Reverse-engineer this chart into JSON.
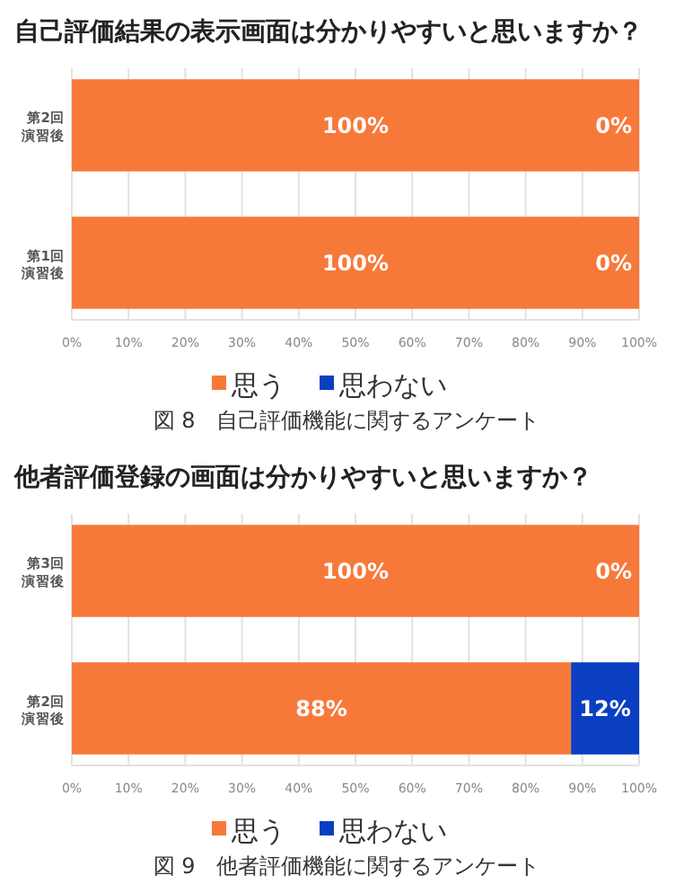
{
  "chart_data": [
    {
      "type": "bar",
      "orientation": "horizontal",
      "stacked": true,
      "title": "自己評価結果の表示画面は分かりやすいと思いますか？",
      "categories": [
        "第2回演習後",
        "第1回演習後"
      ],
      "series": [
        {
          "name": "思う",
          "color": "#f7793a",
          "values": [
            100,
            100
          ],
          "value_labels": [
            "100%",
            "100%"
          ]
        },
        {
          "name": "思わない",
          "color": "#0a3fc2",
          "values": [
            0,
            0
          ],
          "value_labels": [
            "0%",
            "0%"
          ]
        }
      ],
      "xlim": [
        0,
        100
      ],
      "xticks": [
        {
          "value": 0,
          "label": "0%"
        },
        {
          "value": 10,
          "label": "10%"
        },
        {
          "value": 20,
          "label": "20%"
        },
        {
          "value": 30,
          "label": "30%"
        },
        {
          "value": 40,
          "label": "40%"
        },
        {
          "value": 50,
          "label": "50%"
        },
        {
          "value": 60,
          "label": "60%"
        },
        {
          "value": 70,
          "label": "70%"
        },
        {
          "value": 80,
          "label": "80%"
        },
        {
          "value": 90,
          "label": "90%"
        },
        {
          "value": 100,
          "label": "100%"
        }
      ],
      "grid": "x",
      "legend": "bottom",
      "annotations": [
        "図 8　自己評価機能に関するアンケート"
      ]
    },
    {
      "type": "bar",
      "orientation": "horizontal",
      "stacked": true,
      "title": "他者評価登録の画面は分かりやすいと思いますか？",
      "categories": [
        "第3回演習後",
        "第2回演習後"
      ],
      "series": [
        {
          "name": "思う",
          "color": "#f7793a",
          "values": [
            100,
            88
          ],
          "value_labels": [
            "100%",
            "88%"
          ]
        },
        {
          "name": "思わない",
          "color": "#0a3fc2",
          "values": [
            0,
            12
          ],
          "value_labels": [
            "0%",
            "12%"
          ]
        }
      ],
      "xlim": [
        0,
        100
      ],
      "xticks": [
        {
          "value": 0,
          "label": "0%"
        },
        {
          "value": 10,
          "label": "10%"
        },
        {
          "value": 20,
          "label": "20%"
        },
        {
          "value": 30,
          "label": "30%"
        },
        {
          "value": 40,
          "label": "40%"
        },
        {
          "value": 50,
          "label": "50%"
        },
        {
          "value": 60,
          "label": "60%"
        },
        {
          "value": 70,
          "label": "70%"
        },
        {
          "value": 80,
          "label": "80%"
        },
        {
          "value": 90,
          "label": "90%"
        },
        {
          "value": 100,
          "label": "100%"
        }
      ],
      "grid": "x",
      "legend": "bottom",
      "annotations": [
        "図 9　他者評価機能に関するアンケート"
      ]
    }
  ]
}
